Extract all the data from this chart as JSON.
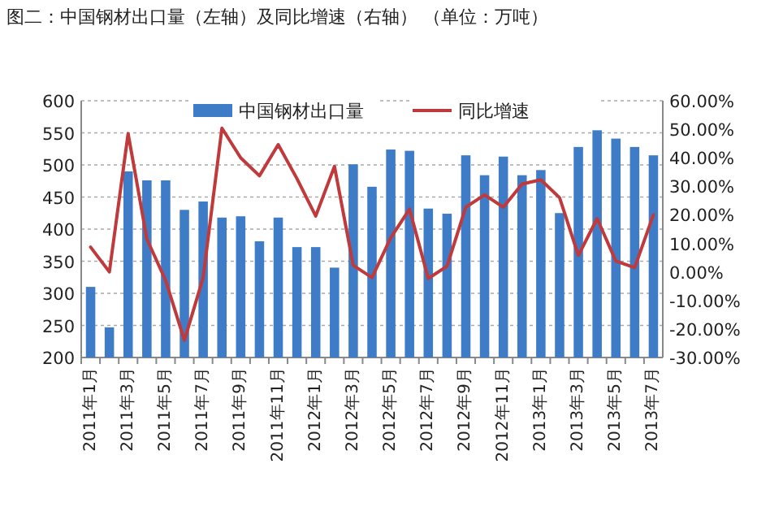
{
  "chart_data": {
    "type": "bar",
    "title": "图二：中国钢材出口量（左轴）及同比增速（右轴）  （单位：万吨）",
    "categories": [
      "2011年1月",
      null,
      "2011年3月",
      null,
      "2011年5月",
      null,
      "2011年7月",
      null,
      "2011年9月",
      null,
      "2011年11月",
      null,
      "2012年1月",
      null,
      "2012年3月",
      null,
      "2012年5月",
      null,
      "2012年7月",
      null,
      "2012年9月",
      null,
      "2012年11月",
      null,
      "2013年1月",
      null,
      "2013年3月",
      null,
      "2013年5月",
      null,
      "2013年7月"
    ],
    "series": [
      {
        "name": "中国钢材出口量",
        "color": "#3f7cc8",
        "values": [
          310,
          247,
          490,
          476,
          476,
          430,
          443,
          418,
          420,
          381,
          418,
          372,
          372,
          340,
          501,
          466,
          524,
          522,
          432,
          424,
          515,
          484,
          513,
          484,
          492,
          425,
          528,
          554,
          541,
          528,
          515
        ]
      },
      {
        "name": "同比增速",
        "type": "line",
        "axis": "y2",
        "color": "#c0393b",
        "values": [
          8.7,
          0,
          48.5,
          11.5,
          -3,
          -24,
          -2,
          50.4,
          40,
          33.7,
          44.6,
          32.7,
          19.6,
          37,
          2.3,
          -2,
          12,
          22,
          -2.3,
          2,
          22.7,
          27,
          22.7,
          30.8,
          32.3,
          26,
          5.8,
          18.7,
          3.8,
          1.5,
          20
        ]
      }
    ],
    "ylim": [
      200,
      600
    ],
    "yticks": [
      200,
      250,
      300,
      350,
      400,
      450,
      500,
      550,
      600
    ],
    "y2lim": [
      -30,
      60
    ],
    "y2ticks": [
      {
        "value": -30,
        "label": "-30.00%"
      },
      {
        "value": -20,
        "label": "-20.00%"
      },
      {
        "value": -10,
        "label": "-10.00%"
      },
      {
        "value": 0,
        "label": "0.00%"
      },
      {
        "value": 10,
        "label": "10.00%"
      },
      {
        "value": 20,
        "label": "20.00%"
      },
      {
        "value": 30,
        "label": "30.00%"
      },
      {
        "value": 40,
        "label": "40.00%"
      },
      {
        "value": 50,
        "label": "50.00%"
      },
      {
        "value": 60,
        "label": "60.00%"
      }
    ],
    "grid": "y",
    "legend": "top",
    "marker": "none",
    "line_style": "solid"
  }
}
